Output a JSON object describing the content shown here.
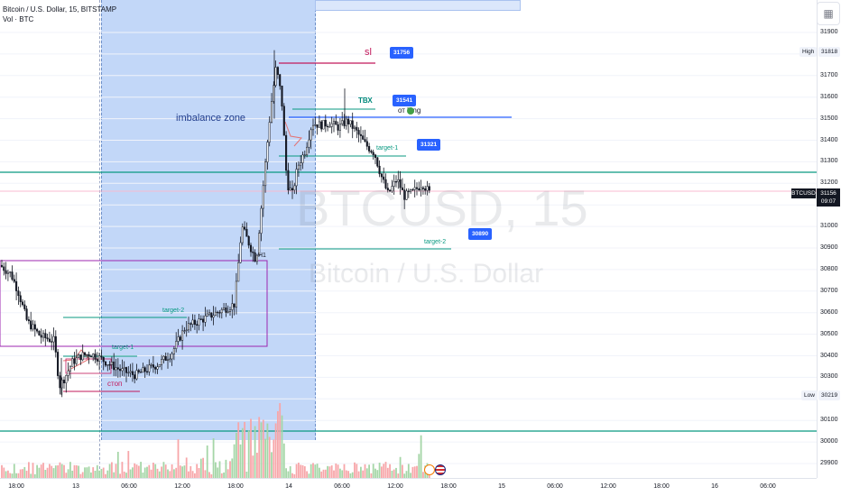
{
  "header": {
    "symbol_line": "Bitcoin / U.S. Dollar, 15, BITSTAMP",
    "volume_line": "Vol · BTC"
  },
  "watermark": {
    "ticker": "BTCUSD, 15",
    "name": "Bitcoin / U.S. Dollar"
  },
  "price_axis": {
    "ticks": [
      "31900",
      "31800",
      "31700",
      "31600",
      "31500",
      "31400",
      "31300",
      "31200",
      "31100",
      "31000",
      "30900",
      "30800",
      "30700",
      "30600",
      "30500",
      "30400",
      "30300",
      "30200",
      "30100",
      "30000",
      "29900"
    ],
    "high": {
      "label": "High",
      "value": "31818"
    },
    "low": {
      "label": "Low",
      "value": "30219"
    },
    "current": {
      "symbol": "BTCUSD",
      "price": "31156",
      "countdown": "09:07"
    }
  },
  "time_axis": {
    "labels": [
      "18:00",
      "13",
      "06:00",
      "12:00",
      "18:00",
      "14",
      "06:00",
      "12:00",
      "18:00",
      "15",
      "06:00",
      "12:00",
      "18:00",
      "16",
      "06:00"
    ]
  },
  "annotations": {
    "imbalance_zone": "imbalance zone",
    "sl": "sl",
    "tbx": "ТВХ",
    "ot_long": "от long",
    "target1_right": "target-1",
    "target2_right": "target-2",
    "target2_left": "target-2",
    "target1_left": "target-1",
    "stop_left": "стоп",
    "h1_label": "H1"
  },
  "price_badges": {
    "sl": "31756",
    "tbx": "31541",
    "target1": "31321",
    "target2": "30890"
  },
  "colors": {
    "up_candle": "#131722",
    "down_candle": "#131722",
    "volume_up": "#f7a6a9",
    "volume_up_green": "#a5d6a7",
    "imbalance_fill": "#bbd3f7",
    "purple_box": "#9c27b0",
    "green_line": "#089981",
    "blue_line": "#2962ff",
    "red": "#c2185b",
    "badge_blue": "#2962ff"
  },
  "icons": {
    "side_button": "grid-icon",
    "flag_icon": "us-flag-icon",
    "event_icon": "lightning-icon"
  }
}
